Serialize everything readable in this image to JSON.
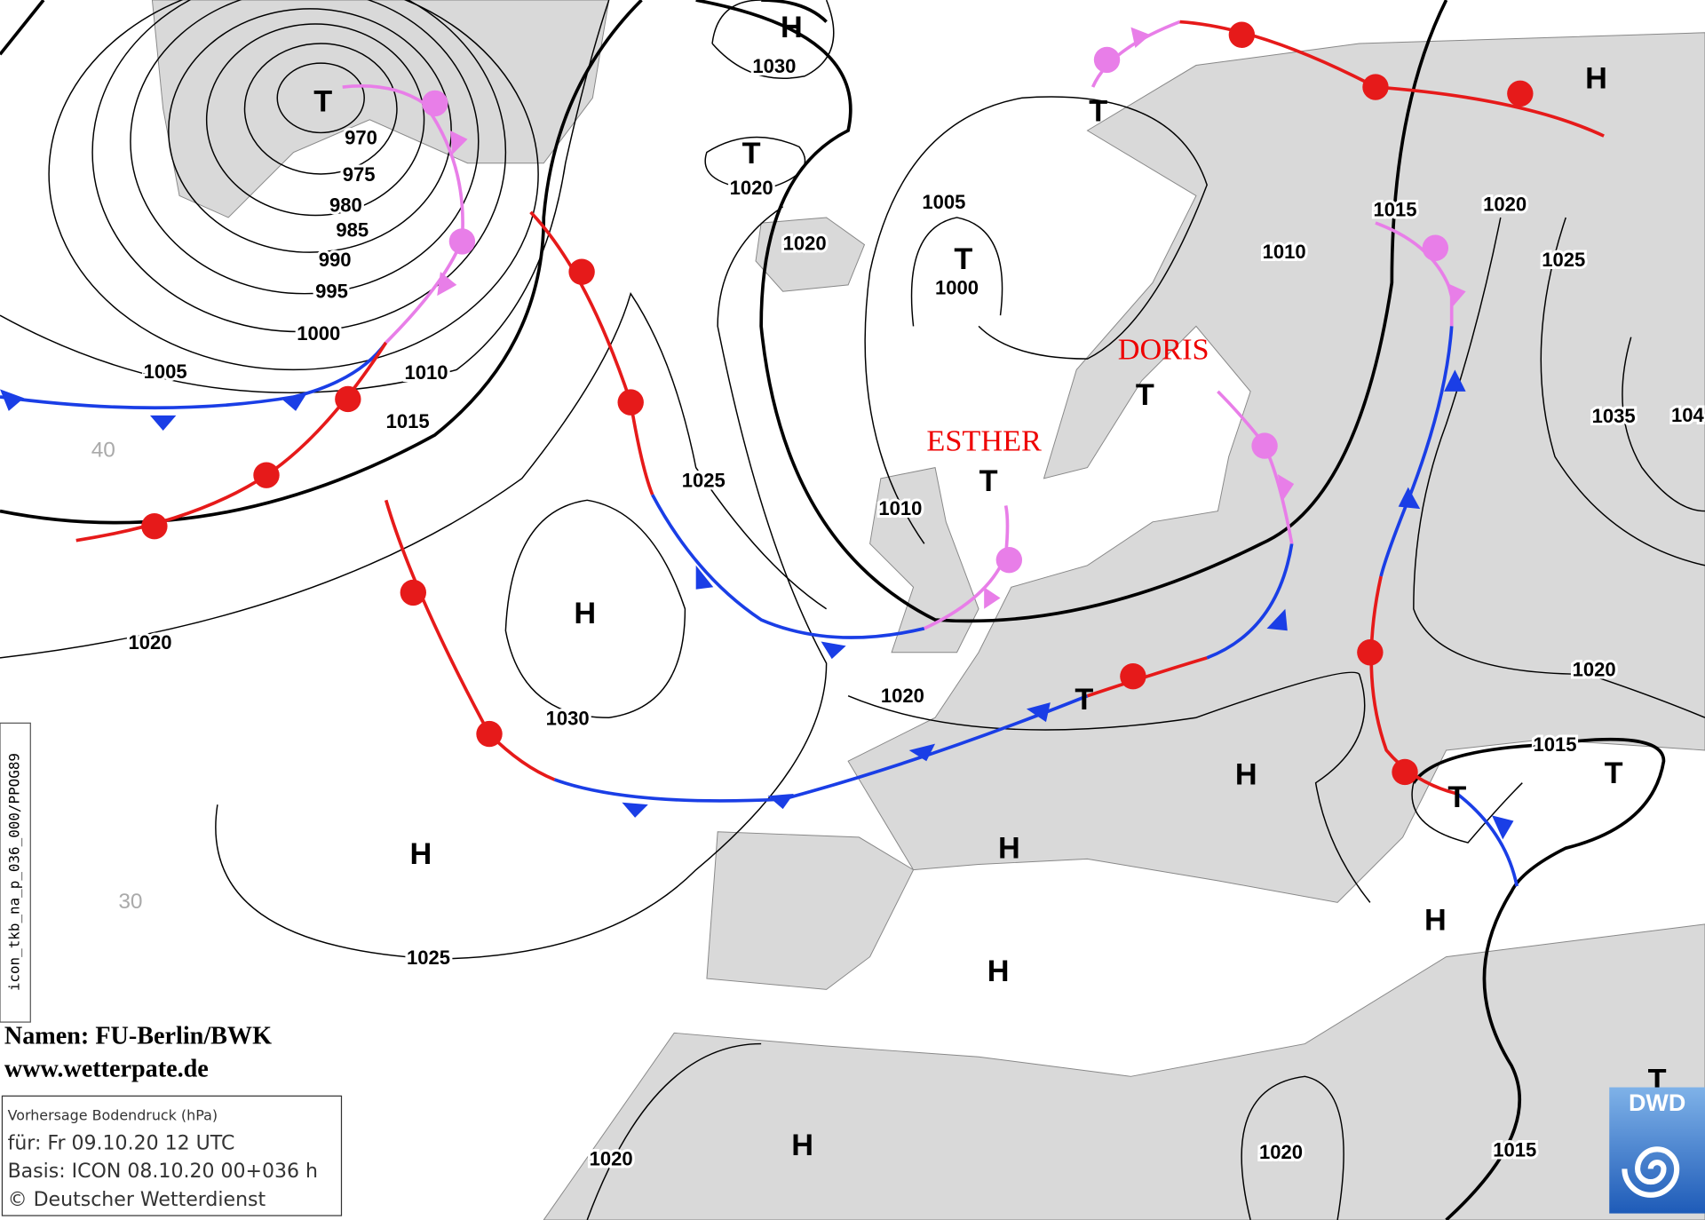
{
  "isobar_labels": [
    970,
    975,
    980,
    985,
    990,
    995,
    1000,
    1005,
    1010,
    1015,
    1020,
    1030,
    1020,
    1020,
    1005,
    1000,
    1010,
    1015,
    1020,
    1025,
    1035,
    "104",
    1025,
    1010,
    1030,
    1020,
    1020,
    1015,
    1025,
    1020,
    1020,
    1015
  ],
  "pressure_centers": [
    "H",
    "T",
    "T",
    "T",
    "T",
    "H",
    "T",
    "T",
    "H",
    "H",
    "T",
    "H",
    "H",
    "H",
    "T",
    "T",
    "H",
    "H",
    "T"
  ],
  "storm_names": [
    "ESTHER",
    "DORIS"
  ],
  "latitude_labels": [
    40,
    30
  ],
  "credits": {
    "names": "Namen: FU-Berlin/BWK",
    "url": "www.wetterpate.de"
  },
  "info_box": {
    "title": "Vorhersage Bodendruck (hPa)",
    "valid": "für:  Fr 09.10.20  12 UTC",
    "basis": "Basis: ICON  08.10.20 00+036 h",
    "copyright": "© Deutscher Wetterdienst"
  },
  "product_code": "icon_tkb_na_p_036_000/PPOG89",
  "logo": "DWD"
}
